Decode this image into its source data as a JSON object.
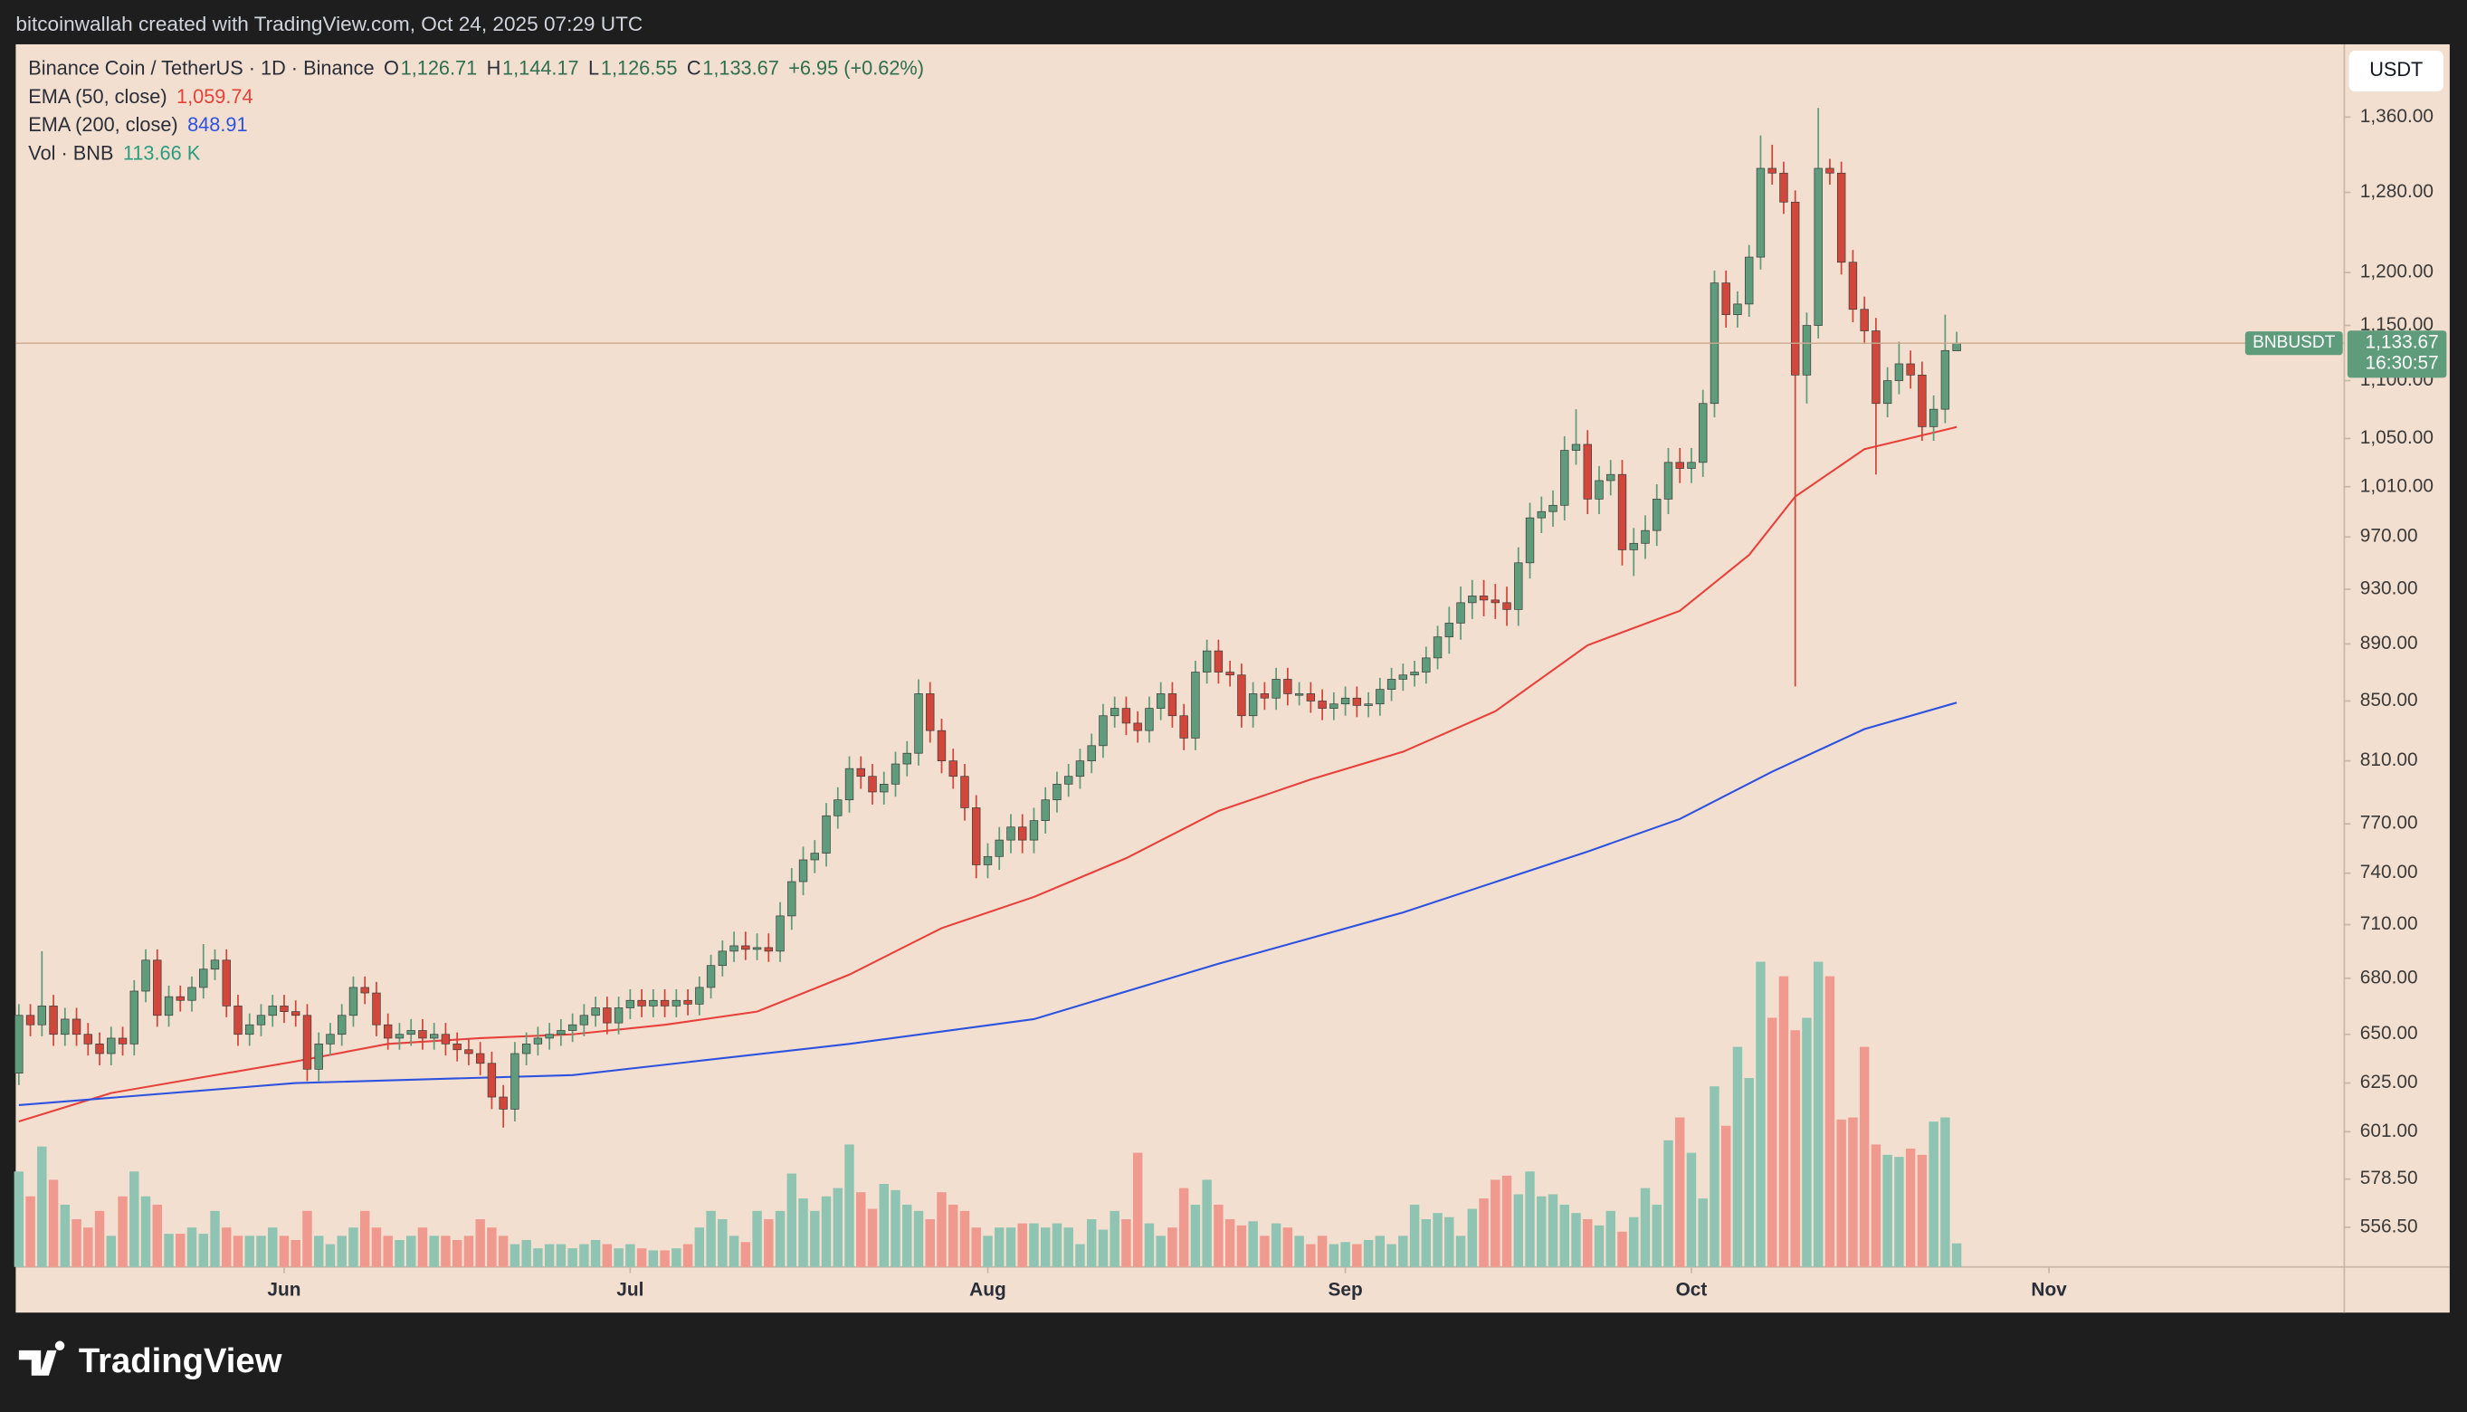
{
  "header": {
    "text": "bitcoinwallah created with TradingView.com, Oct 24, 2025 07:29 UTC"
  },
  "footer": {
    "brand": "TradingView"
  },
  "chart_data": {
    "type": "candlestick",
    "title": "Binance Coin / TetherUS · 1D · Binance",
    "legend_ohlc": [
      {
        "key": "O",
        "value": "1,126.71"
      },
      {
        "key": "H",
        "value": "1,144.17"
      },
      {
        "key": "L",
        "value": "1,126.55"
      },
      {
        "key": "C",
        "value": "1,133.67"
      }
    ],
    "change": "+6.95 (+0.62%)",
    "currency": "USDT",
    "last_price": {
      "symbol": "BNBUSDT",
      "label": "1,133.67",
      "countdown": "16:30:57"
    },
    "colors": {
      "up": "#5f9c7c",
      "down": "#d2473b"
    },
    "log_y": true,
    "ylim": [
      539,
      1442
    ],
    "yticks": [
      {
        "value": 1360,
        "label": "1,360.00"
      },
      {
        "value": 1280,
        "label": "1,280.00"
      },
      {
        "value": 1200,
        "label": "1,200.00"
      },
      {
        "value": 1150,
        "label": "1,150.00"
      },
      {
        "value": 1100,
        "label": "1,100.00"
      },
      {
        "value": 1050,
        "label": "1,050.00"
      },
      {
        "value": 1010,
        "label": "1,010.00"
      },
      {
        "value": 970,
        "label": "970.00"
      },
      {
        "value": 930,
        "label": "930.00"
      },
      {
        "value": 890,
        "label": "890.00"
      },
      {
        "value": 850,
        "label": "850.00"
      },
      {
        "value": 810,
        "label": "810.00"
      },
      {
        "value": 770,
        "label": "770.00"
      },
      {
        "value": 740,
        "label": "740.00"
      },
      {
        "value": 710,
        "label": "710.00"
      },
      {
        "value": 680,
        "label": "680.00"
      },
      {
        "value": 650,
        "label": "650.00"
      },
      {
        "value": 625,
        "label": "625.00"
      },
      {
        "value": 601,
        "label": "601.00"
      },
      {
        "value": 578.5,
        "label": "578.50"
      },
      {
        "value": 556.5,
        "label": "556.50"
      }
    ],
    "xlim": [
      -0.27,
      201.6
    ],
    "xticks": [
      {
        "value": 23,
        "label": "Jun"
      },
      {
        "value": 53,
        "label": "Jul"
      },
      {
        "value": 84,
        "label": "Aug"
      },
      {
        "value": 115,
        "label": "Sep"
      },
      {
        "value": 145,
        "label": "Oct"
      },
      {
        "value": 176,
        "label": "Nov"
      }
    ],
    "open": [
      630,
      660,
      655,
      665,
      650,
      658,
      650,
      645,
      640,
      648,
      645,
      673,
      690,
      660,
      670,
      668,
      675,
      685,
      690,
      665,
      650,
      655,
      660,
      665,
      662,
      660,
      632,
      645,
      650,
      660,
      675,
      672,
      655,
      648,
      650,
      652,
      648,
      650,
      645,
      642,
      640,
      635,
      618,
      612,
      640,
      645,
      648,
      650,
      652,
      655,
      660,
      664,
      656,
      664,
      668,
      665,
      668,
      665,
      668,
      666,
      675,
      687,
      695,
      698,
      696,
      697,
      695,
      715,
      735,
      748,
      752,
      775,
      785,
      805,
      800,
      790,
      795,
      808,
      815,
      855,
      830,
      810,
      800,
      780,
      745,
      750,
      760,
      768,
      760,
      772,
      785,
      795,
      800,
      810,
      820,
      840,
      845,
      835,
      830,
      845,
      855,
      840,
      825,
      870,
      885,
      870,
      868,
      840,
      855,
      852,
      865,
      855,
      855,
      850,
      845,
      848,
      852,
      847,
      848,
      858,
      865,
      868,
      870,
      880,
      895,
      905,
      920,
      925,
      922,
      920,
      915,
      950,
      985,
      990,
      995,
      1040,
      1045,
      1000,
      1015,
      1020,
      960,
      965,
      975,
      1000,
      1030,
      1025,
      1030,
      1080,
      1190,
      1160,
      1170,
      1215,
      1305,
      1300,
      1270,
      1105,
      1150,
      1305,
      1300,
      1210,
      1165,
      1145,
      1080,
      1100,
      1115,
      1105,
      1060,
      1075,
      1126.71
    ],
    "high": [
      666,
      666,
      695,
      671,
      664,
      664,
      656,
      651,
      654,
      654,
      679,
      696,
      696,
      676,
      676,
      681,
      699,
      696,
      696,
      671,
      661,
      666,
      671,
      671,
      668,
      666,
      651,
      656,
      666,
      681,
      681,
      678,
      661,
      656,
      658,
      658,
      656,
      656,
      651,
      648,
      646,
      641,
      624,
      646,
      651,
      654,
      656,
      658,
      661,
      666,
      670,
      670,
      670,
      674,
      674,
      674,
      674,
      674,
      674,
      681,
      693,
      701,
      706,
      706,
      705,
      705,
      723,
      743,
      756,
      760,
      783,
      793,
      813,
      813,
      808,
      803,
      816,
      823,
      865,
      863,
      838,
      818,
      808,
      788,
      758,
      768,
      776,
      776,
      780,
      793,
      803,
      808,
      818,
      828,
      848,
      853,
      853,
      843,
      853,
      863,
      863,
      848,
      878,
      893,
      893,
      878,
      876,
      863,
      863,
      873,
      873,
      863,
      863,
      858,
      856,
      860,
      860,
      856,
      866,
      873,
      876,
      878,
      888,
      903,
      917,
      932,
      937,
      937,
      934,
      932,
      962,
      997,
      1002,
      1007,
      1052,
      1075,
      1057,
      1027,
      1032,
      1032,
      977,
      987,
      1012,
      1042,
      1042,
      1042,
      1092,
      1202,
      1202,
      1182,
      1227,
      1340,
      1330,
      1312,
      1282,
      1162,
      1370,
      1315,
      1312,
      1222,
      1177,
      1157,
      1112,
      1135,
      1127,
      1117,
      1087,
      1160,
      1144.17
    ],
    "low": [
      624,
      649,
      649,
      644,
      644,
      644,
      639,
      634,
      634,
      639,
      639,
      667,
      654,
      654,
      662,
      662,
      669,
      679,
      659,
      644,
      644,
      649,
      654,
      656,
      654,
      626,
      626,
      639,
      644,
      654,
      666,
      649,
      642,
      642,
      644,
      642,
      642,
      639,
      636,
      634,
      629,
      612,
      603,
      606,
      634,
      639,
      642,
      644,
      646,
      649,
      654,
      650,
      650,
      658,
      659,
      659,
      659,
      659,
      660,
      660,
      669,
      681,
      689,
      690,
      690,
      689,
      689,
      707,
      727,
      740,
      744,
      767,
      777,
      792,
      782,
      782,
      787,
      800,
      807,
      822,
      802,
      792,
      772,
      737,
      737,
      742,
      752,
      752,
      752,
      764,
      777,
      787,
      792,
      802,
      812,
      832,
      827,
      822,
      822,
      837,
      832,
      817,
      817,
      862,
      862,
      860,
      832,
      832,
      844,
      844,
      847,
      847,
      842,
      837,
      837,
      840,
      839,
      839,
      840,
      850,
      857,
      860,
      862,
      872,
      883,
      893,
      908,
      910,
      908,
      903,
      903,
      938,
      973,
      978,
      983,
      1028,
      988,
      988,
      1003,
      948,
      940,
      953,
      963,
      988,
      1013,
      1013,
      1018,
      1068,
      1148,
      1148,
      1158,
      1203,
      1288,
      1258,
      860,
      1080,
      1138,
      1288,
      1198,
      1153,
      1133,
      1020,
      1068,
      1088,
      1093,
      1048,
      1048,
      1063,
      1126.55
    ],
    "close": [
      660,
      655,
      665,
      650,
      658,
      650,
      645,
      640,
      648,
      645,
      673,
      690,
      660,
      670,
      668,
      675,
      685,
      690,
      665,
      650,
      655,
      660,
      665,
      662,
      660,
      632,
      645,
      650,
      660,
      675,
      672,
      655,
      648,
      650,
      652,
      648,
      650,
      645,
      642,
      640,
      635,
      618,
      612,
      640,
      645,
      648,
      650,
      652,
      655,
      660,
      664,
      656,
      664,
      668,
      665,
      668,
      665,
      668,
      666,
      675,
      687,
      695,
      698,
      696,
      697,
      695,
      715,
      735,
      748,
      752,
      775,
      785,
      805,
      800,
      790,
      795,
      808,
      815,
      855,
      830,
      810,
      800,
      780,
      745,
      750,
      760,
      768,
      760,
      772,
      785,
      795,
      800,
      810,
      820,
      840,
      845,
      835,
      830,
      845,
      855,
      840,
      825,
      870,
      885,
      870,
      868,
      840,
      855,
      852,
      865,
      855,
      855,
      850,
      845,
      848,
      852,
      847,
      848,
      858,
      865,
      868,
      870,
      880,
      895,
      905,
      920,
      925,
      922,
      920,
      915,
      950,
      985,
      990,
      995,
      1040,
      1045,
      1000,
      1015,
      1020,
      960,
      965,
      975,
      1000,
      1030,
      1025,
      1030,
      1080,
      1190,
      1160,
      1170,
      1215,
      1305,
      1300,
      1270,
      1105,
      1150,
      1305,
      1300,
      1210,
      1165,
      1145,
      1080,
      1100,
      1115,
      1105,
      1060,
      1075,
      1127,
      1133.67
    ],
    "overlays": [
      {
        "name": "EMA (50, close)",
        "value_label": "1,059.74",
        "color": "#e8403a",
        "x": [
          0,
          8,
          16,
          24,
          32,
          40,
          48,
          56,
          64,
          72,
          80,
          88,
          96,
          104,
          112,
          120,
          128,
          136,
          144,
          150,
          154,
          160,
          168
        ],
        "values": [
          606,
          620,
          628,
          636,
          645,
          648,
          650,
          655,
          662,
          682,
          708,
          726,
          749,
          778,
          798,
          816,
          843,
          889,
          914,
          956,
          1002,
          1041,
          1059.74
        ]
      },
      {
        "name": "EMA (200, close)",
        "value_label": "848.91",
        "color": "#2d52e0",
        "x": [
          0,
          24,
          48,
          72,
          88,
          104,
          120,
          136,
          144,
          152,
          160,
          168
        ],
        "values": [
          614,
          625,
          629,
          645,
          658,
          688,
          717,
          753,
          773,
          803,
          831,
          848.91
        ]
      }
    ],
    "volume": {
      "name": "Vol · BNB",
      "value_label": "113.66 K",
      "colors": {
        "up": "#8fc4b3",
        "down": "#f0998f"
      },
      "values": [
        460,
        340,
        580,
        420,
        300,
        230,
        190,
        270,
        150,
        340,
        460,
        340,
        300,
        160,
        160,
        190,
        160,
        270,
        190,
        150,
        150,
        150,
        190,
        150,
        130,
        270,
        150,
        110,
        150,
        190,
        270,
        190,
        150,
        130,
        150,
        190,
        150,
        150,
        130,
        150,
        230,
        190,
        150,
        110,
        130,
        90,
        110,
        110,
        90,
        110,
        130,
        110,
        90,
        110,
        90,
        80,
        80,
        90,
        110,
        190,
        270,
        230,
        150,
        120,
        270,
        230,
        270,
        450,
        330,
        270,
        340,
        380,
        590,
        360,
        280,
        400,
        370,
        300,
        270,
        230,
        360,
        300,
        270,
        190,
        150,
        190,
        190,
        210,
        210,
        190,
        210,
        190,
        110,
        230,
        180,
        270,
        230,
        550,
        210,
        150,
        190,
        380,
        300,
        420,
        300,
        230,
        200,
        220,
        150,
        210,
        190,
        150,
        110,
        150,
        110,
        120,
        110,
        130,
        150,
        110,
        150,
        300,
        230,
        260,
        240,
        150,
        280,
        330,
        420,
        440,
        350,
        460,
        340,
        350,
        300,
        260,
        230,
        200,
        270,
        170,
        240,
        380,
        300,
        610,
        720,
        550,
        330,
        870,
        680,
        1060,
        910,
        1470,
        1200,
        1400,
        1140,
        1200,
        1470,
        1400,
        710,
        720,
        1060,
        590,
        540,
        530,
        570,
        540,
        700,
        720,
        113.66
      ]
    }
  }
}
